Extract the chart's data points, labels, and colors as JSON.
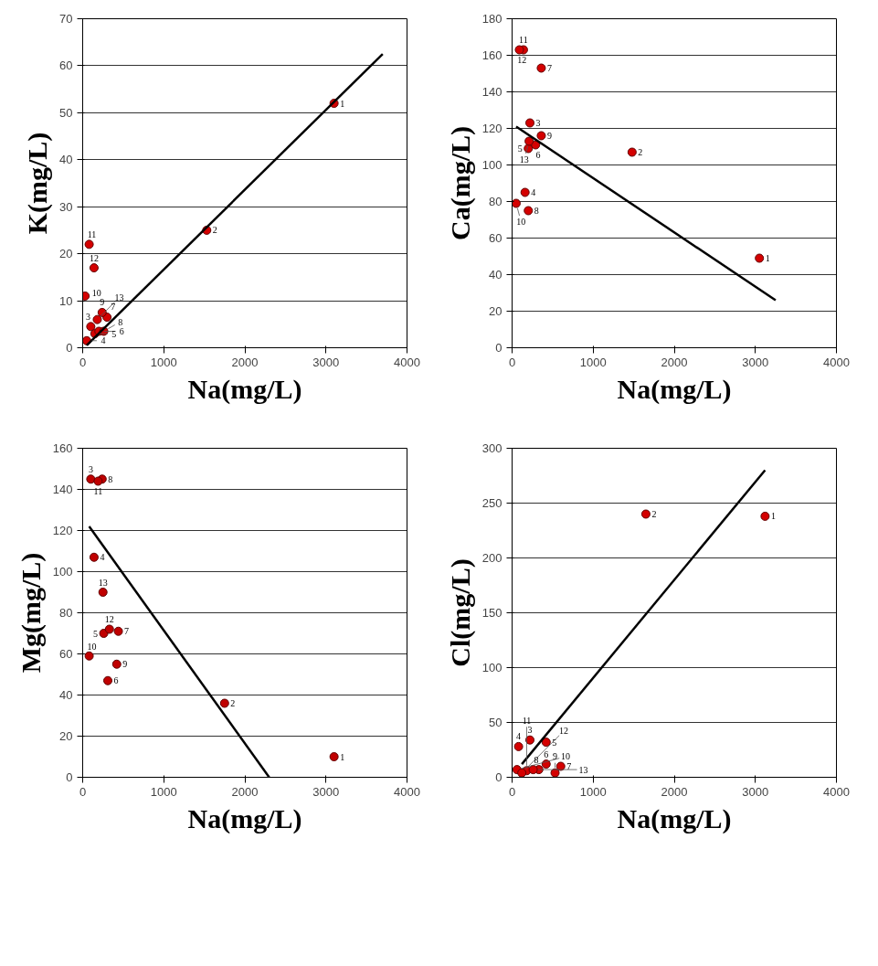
{
  "chart_data": [
    {
      "type": "scatter",
      "xlabel": "Na(mg/L)",
      "ylabel": "K(mg/L)",
      "xlim": [
        0,
        4000
      ],
      "ylim": [
        0,
        70
      ],
      "xticks": [
        0,
        1000,
        2000,
        3000,
        4000
      ],
      "yticks": [
        0,
        10,
        20,
        30,
        40,
        50,
        60,
        70
      ],
      "grid": "y",
      "series": [
        {
          "marker": "circle",
          "color": "#d40000",
          "x": [
            3100,
            1530,
            100,
            50,
            150,
            200,
            300,
            260,
            240,
            30,
            80,
            140,
            180
          ],
          "values": [
            52,
            25,
            4.5,
            1.5,
            3,
            3.5,
            6.5,
            3.5,
            7.5,
            11,
            22,
            17,
            6
          ]
        },
        {
          "type": "line",
          "color": "#000000",
          "x": [
            50,
            3700
          ],
          "values": [
            0.5,
            62.5
          ]
        }
      ],
      "annotations": [
        {
          "text": "1",
          "x": 3100,
          "y": 52
        },
        {
          "text": "2",
          "x": 1530,
          "y": 25
        },
        {
          "text": "3",
          "x": 100,
          "y": 4.5
        },
        {
          "text": "4",
          "x": 50,
          "y": 1.5
        },
        {
          "text": "5",
          "x": 150,
          "y": 3
        },
        {
          "text": "6",
          "x": 200,
          "y": 3.5
        },
        {
          "text": "7",
          "x": 300,
          "y": 6.5
        },
        {
          "text": "8",
          "x": 260,
          "y": 3.5
        },
        {
          "text": "9",
          "x": 240,
          "y": 7.5
        },
        {
          "text": "10",
          "x": 30,
          "y": 11
        },
        {
          "text": "11",
          "x": 80,
          "y": 22
        },
        {
          "text": "12",
          "x": 140,
          "y": 17
        },
        {
          "text": "13",
          "x": 180,
          "y": 6
        }
      ]
    },
    {
      "type": "scatter",
      "xlabel": "Na(mg/L)",
      "ylabel": "Ca(mg/L)",
      "xlim": [
        0,
        4000
      ],
      "ylim": [
        0,
        180
      ],
      "xticks": [
        0,
        1000,
        2000,
        3000,
        4000
      ],
      "yticks": [
        0,
        20,
        40,
        60,
        80,
        100,
        120,
        140,
        160,
        180
      ],
      "grid": "y",
      "series": [
        {
          "marker": "circle",
          "color": "#d40000",
          "x": [
            3050,
            1480,
            220,
            160,
            200,
            290,
            360,
            200,
            360,
            50,
            140,
            90,
            210
          ],
          "values": [
            49,
            107,
            123,
            85,
            109,
            111,
            153,
            75,
            116,
            79,
            163,
            163,
            113
          ]
        },
        {
          "type": "line",
          "color": "#000000",
          "x": [
            50,
            3250
          ],
          "values": [
            121,
            26
          ]
        }
      ],
      "annotations": [
        {
          "text": "1",
          "x": 3050,
          "y": 49
        },
        {
          "text": "2",
          "x": 1480,
          "y": 107
        },
        {
          "text": "3",
          "x": 220,
          "y": 123
        },
        {
          "text": "4",
          "x": 160,
          "y": 85
        },
        {
          "text": "5",
          "x": 200,
          "y": 109
        },
        {
          "text": "6",
          "x": 290,
          "y": 111
        },
        {
          "text": "7",
          "x": 360,
          "y": 153
        },
        {
          "text": "8",
          "x": 200,
          "y": 75
        },
        {
          "text": "9",
          "x": 360,
          "y": 116
        },
        {
          "text": "10",
          "x": 50,
          "y": 79
        },
        {
          "text": "11",
          "x": 140,
          "y": 163
        },
        {
          "text": "12",
          "x": 90,
          "y": 163
        },
        {
          "text": "13",
          "x": 210,
          "y": 113
        }
      ]
    },
    {
      "type": "scatter",
      "xlabel": "Na(mg/L)",
      "ylabel": "Mg(mg/L)",
      "xlim": [
        0,
        4000
      ],
      "ylim": [
        0,
        160
      ],
      "xticks": [
        0,
        1000,
        2000,
        3000,
        4000
      ],
      "yticks": [
        0,
        20,
        40,
        60,
        80,
        100,
        120,
        140,
        160
      ],
      "grid": "y",
      "series": [
        {
          "marker": "circle",
          "color": "#c00000",
          "x": [
            3100,
            1750,
            100,
            140,
            260,
            310,
            440,
            240,
            420,
            80,
            190,
            330,
            250
          ],
          "values": [
            10,
            36,
            145,
            107,
            70,
            47,
            71,
            145,
            55,
            59,
            144,
            72,
            90
          ]
        },
        {
          "type": "line",
          "color": "#000000",
          "x": [
            80,
            2300
          ],
          "values": [
            122,
            0
          ]
        }
      ],
      "annotations": [
        {
          "text": "1",
          "x": 3100,
          "y": 10
        },
        {
          "text": "2",
          "x": 1750,
          "y": 36
        },
        {
          "text": "3",
          "x": 100,
          "y": 145
        },
        {
          "text": "4",
          "x": 140,
          "y": 107
        },
        {
          "text": "5",
          "x": 260,
          "y": 70
        },
        {
          "text": "6",
          "x": 310,
          "y": 47
        },
        {
          "text": "7",
          "x": 440,
          "y": 71
        },
        {
          "text": "8",
          "x": 240,
          "y": 145
        },
        {
          "text": "9",
          "x": 420,
          "y": 55
        },
        {
          "text": "10",
          "x": 80,
          "y": 59
        },
        {
          "text": "11",
          "x": 190,
          "y": 144
        },
        {
          "text": "12",
          "x": 330,
          "y": 72
        },
        {
          "text": "13",
          "x": 250,
          "y": 90
        }
      ]
    },
    {
      "type": "scatter",
      "xlabel": "Na(mg/L)",
      "ylabel": "Cl(mg/L)",
      "xlim": [
        0,
        4000
      ],
      "ylim": [
        0,
        300
      ],
      "xticks": [
        0,
        1000,
        2000,
        3000,
        4000
      ],
      "yticks": [
        0,
        50,
        100,
        150,
        200,
        250,
        300
      ],
      "grid": "y",
      "series": [
        {
          "marker": "circle",
          "color": "#d40000",
          "x": [
            3120,
            1650,
            220,
            80,
            420,
            420,
            600,
            330,
            530,
            60,
            180,
            120,
            260
          ],
          "values": [
            238,
            240,
            34,
            28,
            32,
            12,
            10,
            7,
            4,
            7,
            6,
            4,
            7
          ]
        },
        {
          "type": "line",
          "color": "#000000",
          "x": [
            120,
            3120
          ],
          "values": [
            12,
            280
          ]
        }
      ],
      "annotations": [
        {
          "text": "1",
          "x": 3120,
          "y": 238
        },
        {
          "text": "2",
          "x": 1650,
          "y": 240
        },
        {
          "text": "3",
          "x": 220,
          "y": 34
        },
        {
          "text": "4",
          "x": 80,
          "y": 28
        },
        {
          "text": "5",
          "x": 420,
          "y": 32
        },
        {
          "text": "6",
          "x": 420,
          "y": 12
        },
        {
          "text": "7",
          "x": 600,
          "y": 10
        },
        {
          "text": "8",
          "x": 330,
          "y": 7
        },
        {
          "text": "9",
          "x": 530,
          "y": 4
        },
        {
          "text": "10",
          "x": 60,
          "y": 7
        },
        {
          "text": "11",
          "x": 180,
          "y": 6
        },
        {
          "text": "12",
          "x": 120,
          "y": 4
        },
        {
          "text": "13",
          "x": 260,
          "y": 7
        }
      ]
    }
  ]
}
